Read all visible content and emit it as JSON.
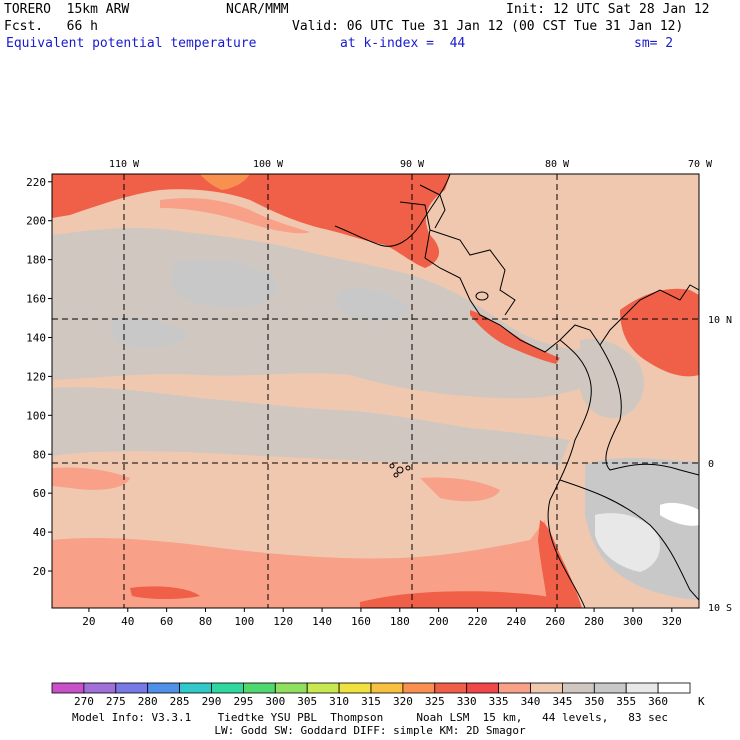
{
  "header": {
    "model": "TORERO  15km ARW",
    "org": "NCAR/MMM",
    "init": "Init: 12 UTC Sat 28 Jan 12",
    "fcst": "Fcst.   66 h",
    "valid": "Valid: 06 UTC Tue 31 Jan 12 (00 CST Tue 31 Jan 12)",
    "field": "Equivalent potential temperature",
    "level": "at k-index =  44",
    "smooth": "sm= 2"
  },
  "map": {
    "lon_labels": [
      "110 W",
      "100 W",
      "90 W",
      "80 W",
      "70 W"
    ],
    "lat_labels": [
      "10 N",
      "0",
      "10 S"
    ],
    "y_ticks": [
      "220",
      "200",
      "180",
      "160",
      "140",
      "120",
      "100",
      "80",
      "60",
      "40",
      "20"
    ],
    "x_ticks": [
      "20",
      "40",
      "60",
      "80",
      "100",
      "120",
      "140",
      "160",
      "180",
      "200",
      "220",
      "240",
      "260",
      "280",
      "300",
      "320"
    ],
    "y_tick_values": [
      220,
      200,
      180,
      160,
      140,
      120,
      100,
      80,
      60,
      40,
      20
    ],
    "x_tick_values": [
      20,
      40,
      60,
      80,
      100,
      120,
      140,
      160,
      180,
      200,
      220,
      240,
      260,
      280,
      300,
      320
    ],
    "grid_range_x": [
      1,
      334
    ],
    "grid_range_y": [
      1,
      224
    ]
  },
  "colorbar": {
    "labels": [
      "270",
      "275",
      "280",
      "285",
      "290",
      "295",
      "300",
      "305",
      "310",
      "315",
      "320",
      "325",
      "330",
      "335",
      "340",
      "345",
      "350",
      "355",
      "360"
    ],
    "unit": "K",
    "colors": [
      "#c850c8",
      "#a070d8",
      "#7878e8",
      "#5090e8",
      "#30c8c8",
      "#30d8a0",
      "#50d870",
      "#90e060",
      "#c8e850",
      "#f0e040",
      "#f8c040",
      "#f89050",
      "#f06048",
      "#f04848",
      "#f8a088",
      "#f0c8b0",
      "#d0c8c0",
      "#c8c8c8",
      "#e8e8e8",
      "#ffffff"
    ]
  },
  "footer": {
    "line1": "Model Info: V3.3.1    Tiedtke YSU PBL  Thompson     Noah LSM  15 km,   44 levels,   83 sec",
    "line2": "LW: Godd SW: Goddard DIFF: simple KM: 2D Smagor"
  }
}
